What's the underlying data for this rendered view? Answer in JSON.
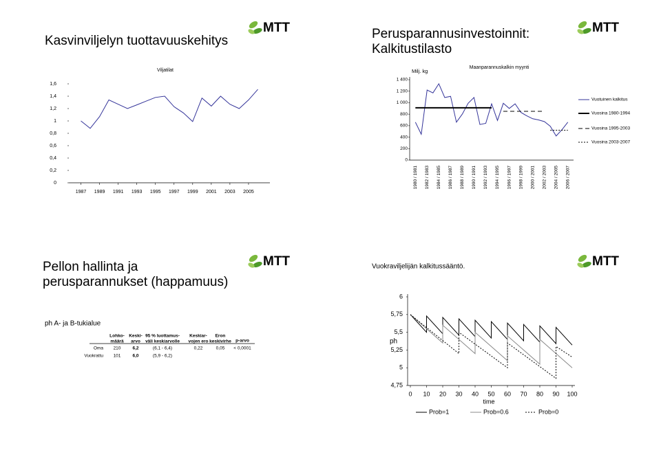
{
  "slides": [
    {
      "title": "Kasvinviljelyn tuottavuuskehitys",
      "logo": "MTT"
    },
    {
      "title": [
        "Perusparannusinvestoinnit:",
        "Kalkitustilasto"
      ],
      "logo": "MTT"
    },
    {
      "title": [
        "Pellon hallinta ja",
        "perusparannukset (happamuus)"
      ],
      "logo": "MTT",
      "subtitle": "ph A- ja B-tukialue",
      "table": {
        "header": [
          [
            "Lohko-",
            "määrä"
          ],
          [
            "Keski-",
            "arvo"
          ],
          [
            "95 % luottamus-",
            "väli keskiarvolle"
          ],
          [
            "Keskiar-",
            "vojen ero"
          ],
          [
            "Eron",
            "keskivirhe"
          ],
          [
            "p-arvo"
          ]
        ],
        "rows": [
          [
            "Oma",
            "210",
            "6,2",
            "(6,1 - 6,4)",
            "0,22",
            "0,05",
            "< 0,0001"
          ],
          [
            "Vuokrattu",
            "101",
            "6,0",
            "(5,9 - 6,2)"
          ]
        ]
      }
    },
    {
      "title": "Vuokraviljelijän kalkitussääntö.",
      "logo": "MTT"
    }
  ],
  "chart_data": [
    {
      "type": "line",
      "title": "Viljatilat",
      "x": [
        1987,
        1988,
        1989,
        1990,
        1991,
        1992,
        1993,
        1994,
        1995,
        1996,
        1997,
        1998,
        1999,
        2000,
        2001,
        2002,
        2003,
        2004,
        2005,
        2006
      ],
      "series": [
        {
          "color": "#333399",
          "line_style": "solid",
          "values": [
            1.0,
            0.88,
            1.07,
            1.34,
            1.27,
            1.2,
            1.26,
            1.32,
            1.38,
            1.4,
            1.23,
            1.13,
            0.99,
            1.37,
            1.24,
            1.4,
            1.27,
            1.2,
            1.34,
            1.51
          ]
        }
      ],
      "xlim": [
        1986,
        2007
      ],
      "xticks": [
        1987,
        1989,
        1991,
        1993,
        1995,
        1997,
        1999,
        2001,
        2003,
        2005
      ],
      "ylim": [
        0,
        1.6
      ],
      "yticks": [
        0,
        {
          "value": 0.2,
          "label": "0,2"
        },
        {
          "value": 0.4,
          "label": "0,4"
        },
        {
          "value": 0.6,
          "label": "0,6"
        },
        {
          "value": 0.8,
          "label": "0,8"
        },
        1,
        {
          "value": 1.2,
          "label": "1,2"
        },
        {
          "value": 1.4,
          "label": "1,4"
        },
        {
          "value": 1.6,
          "label": "1,6"
        }
      ],
      "grid": false
    },
    {
      "type": "line",
      "title": "Maanparannuskalkin myynti",
      "y_label": "Milj. kg",
      "categories": [
        "1980 / 1981",
        null,
        "1982 / 1983",
        null,
        "1984 / 1985",
        null,
        "1986 / 1987",
        null,
        "1988 / 1989",
        null,
        "1990 / 1991",
        null,
        "1992 / 1993",
        null,
        "1994 / 1995",
        null,
        "1996 / 1997",
        null,
        "1998 / 1999",
        null,
        "2000 / 2001",
        null,
        "2002 / 2003",
        null,
        "2004 / 2005",
        null,
        "2006 / 2007"
      ],
      "series": [
        {
          "name": "Vuotuinen kalkitus",
          "color": "#333399",
          "line_style": "solid",
          "values": [
            660,
            450,
            1220,
            1170,
            1330,
            1090,
            1110,
            660,
            800,
            990,
            1090,
            620,
            640,
            980,
            690,
            990,
            900,
            980,
            830,
            770,
            720,
            700,
            670,
            590,
            420,
            530,
            660
          ]
        },
        {
          "name": "Vuosina 1980-1994",
          "color": "#000000",
          "line_style": "solid-thick",
          "values": [
            910,
            910,
            910,
            910,
            910,
            910,
            910,
            910,
            910,
            910,
            910,
            910,
            910,
            910,
            null,
            null,
            null,
            null,
            null,
            null,
            null,
            null,
            null,
            null,
            null,
            null,
            null
          ]
        },
        {
          "name": "Vuosina 1995-2003",
          "color": "#000000",
          "line_style": "dashed",
          "values": [
            null,
            null,
            null,
            null,
            null,
            null,
            null,
            null,
            null,
            null,
            null,
            null,
            null,
            null,
            null,
            850,
            850,
            850,
            850,
            850,
            850,
            850,
            850,
            null,
            null,
            null,
            null
          ]
        },
        {
          "name": "Vuosina 2003-2007",
          "color": "#000000",
          "line_style": "dotted",
          "values": [
            null,
            null,
            null,
            null,
            null,
            null,
            null,
            null,
            null,
            null,
            null,
            null,
            null,
            null,
            null,
            null,
            null,
            null,
            null,
            null,
            null,
            null,
            null,
            520,
            520,
            520,
            520
          ]
        }
      ],
      "ylim": [
        0,
        1400
      ],
      "yticks": [
        0,
        200,
        400,
        600,
        800,
        {
          "value": 1000,
          "label": "1 000"
        },
        {
          "value": 1200,
          "label": "1 200"
        },
        {
          "value": 1400,
          "label": "1 400"
        }
      ],
      "grid": false,
      "legend": "right"
    },
    {
      "type": "line",
      "x_label": "time",
      "y_label": "ph",
      "series": [
        {
          "name": "Prob=1",
          "color": "#000000",
          "line_style": "solid",
          "x": [
            0,
            10,
            10,
            20,
            20,
            30,
            30,
            40,
            40,
            50,
            50,
            60,
            60,
            70,
            70,
            80,
            80,
            90,
            90,
            100
          ],
          "values": [
            5.75,
            5.5,
            5.73,
            5.48,
            5.71,
            5.46,
            5.69,
            5.44,
            5.67,
            5.42,
            5.65,
            5.4,
            5.63,
            5.38,
            5.61,
            5.36,
            5.59,
            5.34,
            5.57,
            5.32
          ]
        },
        {
          "name": "Prob=0.6",
          "color": "#888888",
          "line_style": "solid",
          "x": [
            0,
            20,
            20,
            40,
            40,
            60,
            60,
            80,
            80,
            100
          ],
          "values": [
            5.75,
            5.35,
            5.6,
            5.2,
            5.5,
            5.1,
            5.45,
            5.05,
            5.4,
            5.0
          ]
        },
        {
          "name": "Prob=0",
          "color": "#000000",
          "line_style": "dotted",
          "x": [
            0,
            30,
            30,
            60,
            60,
            90,
            90,
            100
          ],
          "values": [
            5.75,
            5.2,
            5.5,
            5.0,
            5.35,
            4.85,
            5.3,
            5.15
          ]
        }
      ],
      "xlim": [
        0,
        100
      ],
      "xticks": [
        0,
        10,
        20,
        30,
        40,
        50,
        60,
        70,
        80,
        90,
        100
      ],
      "ylim": [
        4.75,
        6
      ],
      "yticks": [
        {
          "value": 4.75,
          "label": "4,75"
        },
        5,
        {
          "value": 5.25,
          "label": "5,25"
        },
        {
          "value": 5.5,
          "label": "5,5"
        },
        {
          "value": 5.75,
          "label": "5,75"
        },
        6
      ],
      "grid": false,
      "legend": "bottom"
    }
  ]
}
